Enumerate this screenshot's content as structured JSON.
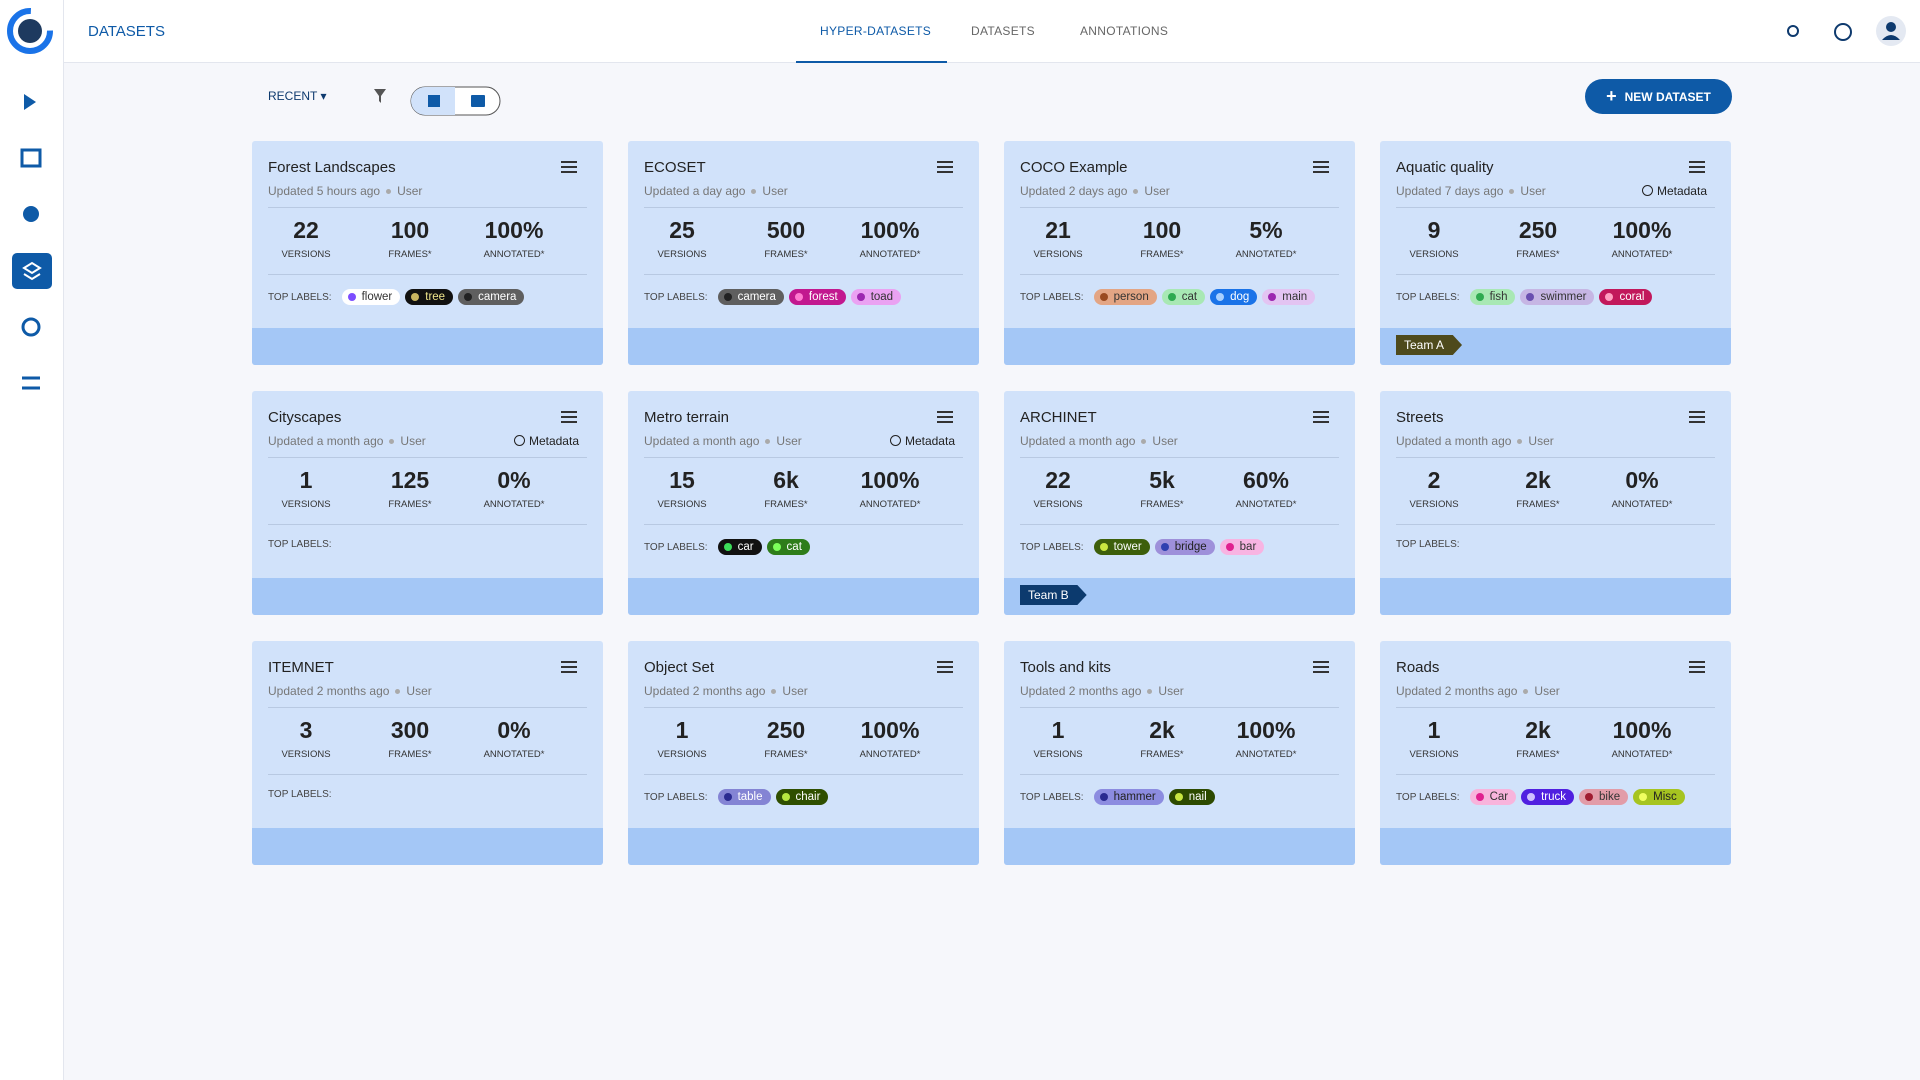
{
  "header": {
    "title": "DATASETS",
    "tabs": [
      "HYPER-DATASETS",
      "DATASETS",
      "ANNOTATIONS"
    ]
  },
  "toolbar": {
    "sort": "RECENT",
    "new_button": "NEW DATASET"
  },
  "cards": [
    {
      "title": "Forest Landscapes",
      "updated": "Updated 5 hours ago",
      "user": "User",
      "stats": [
        {
          "value": "22",
          "label": "VERSIONS"
        },
        {
          "value": "100",
          "label": "FRAMES*"
        },
        {
          "value": "100%",
          "label": "ANNOTATED*"
        }
      ],
      "labels_heading": "TOP LABELS:",
      "labels": [
        {
          "text": "flower",
          "bg": "#ffffff",
          "fg": "#333333",
          "dot": "#7c4dff"
        },
        {
          "text": "tree",
          "bg": "#111111",
          "fg": "#f0e68c",
          "dot": "#c8b560"
        },
        {
          "text": "camera",
          "bg": "#5f5f5f",
          "fg": "#ffffff",
          "dot": "#222222"
        }
      ]
    },
    {
      "title": "ECOSET",
      "updated": "Updated a day ago",
      "user": "User",
      "stats": [
        {
          "value": "25",
          "label": "VERSIONS"
        },
        {
          "value": "500",
          "label": "FRAMES*"
        },
        {
          "value": "100%",
          "label": "ANNOTATED*"
        }
      ],
      "labels_heading": "TOP LABELS:",
      "labels": [
        {
          "text": "camera",
          "bg": "#5f5f5f",
          "fg": "#ffffff",
          "dot": "#222222"
        },
        {
          "text": "forest",
          "bg": "#c2188f",
          "fg": "#ffffff",
          "dot": "#ff7ad0"
        },
        {
          "text": "toad",
          "bg": "#eaa2f2",
          "fg": "#333333",
          "dot": "#9c27b0"
        }
      ]
    },
    {
      "title": "COCO Example",
      "updated": "Updated 2 days ago",
      "user": "User",
      "stats": [
        {
          "value": "21",
          "label": "VERSIONS"
        },
        {
          "value": "100",
          "label": "FRAMES*"
        },
        {
          "value": "5%",
          "label": "ANNOTATED*"
        }
      ],
      "labels_heading": "TOP LABELS:",
      "labels": [
        {
          "text": "person",
          "bg": "#e3a584",
          "fg": "#333333",
          "dot": "#9a4a20"
        },
        {
          "text": "cat",
          "bg": "#a8e8b4",
          "fg": "#333333",
          "dot": "#2eaa50"
        },
        {
          "text": "dog",
          "bg": "#1a73e8",
          "fg": "#ffffff",
          "dot": "#a8d0ff"
        },
        {
          "text": "main",
          "bg": "#e3c4f2",
          "fg": "#333333",
          "dot": "#9c27b0"
        }
      ]
    },
    {
      "title": "Aquatic quality",
      "updated": "Updated 7 days ago",
      "user": "User",
      "metadata": "Metadata",
      "stats": [
        {
          "value": "9",
          "label": "VERSIONS"
        },
        {
          "value": "250",
          "label": "FRAMES*"
        },
        {
          "value": "100%",
          "label": "ANNOTATED*"
        }
      ],
      "labels_heading": "TOP LABELS:",
      "labels": [
        {
          "text": "fish",
          "bg": "#a8e8b4",
          "fg": "#333333",
          "dot": "#2eaa50"
        },
        {
          "text": "swimmer",
          "bg": "#c6b6e4",
          "fg": "#333333",
          "dot": "#6a4fb0"
        },
        {
          "text": "coral",
          "bg": "#c2185b",
          "fg": "#ffffff",
          "dot": "#ff9ec0"
        }
      ],
      "tag": {
        "text": "Team A",
        "color": "#4e4a1c"
      }
    },
    {
      "title": "Cityscapes",
      "updated": "Updated a month ago",
      "user": "User",
      "metadata": "Metadata",
      "stats": [
        {
          "value": "1",
          "label": "VERSIONS"
        },
        {
          "value": "125",
          "label": "FRAMES*"
        },
        {
          "value": "0%",
          "label": "ANNOTATED*"
        }
      ],
      "labels_heading": "TOP LABELS:",
      "labels": []
    },
    {
      "title": "Metro terrain",
      "updated": "Updated a month ago",
      "user": "User",
      "metadata": "Metadata",
      "stats": [
        {
          "value": "15",
          "label": "VERSIONS"
        },
        {
          "value": "6k",
          "label": "FRAMES*"
        },
        {
          "value": "100%",
          "label": "ANNOTATED*"
        }
      ],
      "labels_heading": "TOP LABELS:",
      "labels": [
        {
          "text": "car",
          "bg": "#111111",
          "fg": "#ffffff",
          "dot": "#3ddc5a"
        },
        {
          "text": "cat",
          "bg": "#2e7d1a",
          "fg": "#ffffff",
          "dot": "#7dff5a"
        }
      ]
    },
    {
      "title": "ARCHINET",
      "updated": "Updated a month ago",
      "user": "User",
      "stats": [
        {
          "value": "22",
          "label": "VERSIONS"
        },
        {
          "value": "5k",
          "label": "FRAMES*"
        },
        {
          "value": "60%",
          "label": "ANNOTATED*"
        }
      ],
      "labels_heading": "TOP LABELS:",
      "labels": [
        {
          "text": "tower",
          "bg": "#3d5f0b",
          "fg": "#ffffff",
          "dot": "#c8e640"
        },
        {
          "text": "bridge",
          "bg": "#9e90da",
          "fg": "#222222",
          "dot": "#3040b0"
        },
        {
          "text": "bar",
          "bg": "#f8b4e2",
          "fg": "#333333",
          "dot": "#e0208f"
        }
      ],
      "tag": {
        "text": "Team B",
        "color": "#0c3a6e"
      }
    },
    {
      "title": "Streets",
      "updated": "Updated a month ago",
      "user": "User",
      "stats": [
        {
          "value": "2",
          "label": "VERSIONS"
        },
        {
          "value": "2k",
          "label": "FRAMES*"
        },
        {
          "value": "0%",
          "label": "ANNOTATED*"
        }
      ],
      "labels_heading": "TOP LABELS:",
      "labels": []
    },
    {
      "title": "ITEMNET",
      "updated": "Updated 2 months ago",
      "user": "User",
      "stats": [
        {
          "value": "3",
          "label": "VERSIONS"
        },
        {
          "value": "300",
          "label": "FRAMES*"
        },
        {
          "value": "0%",
          "label": "ANNOTATED*"
        }
      ],
      "labels_heading": "TOP LABELS:",
      "labels": []
    },
    {
      "title": "Object Set",
      "updated": "Updated 2 months ago",
      "user": "User",
      "stats": [
        {
          "value": "1",
          "label": "VERSIONS"
        },
        {
          "value": "250",
          "label": "FRAMES*"
        },
        {
          "value": "100%",
          "label": "ANNOTATED*"
        }
      ],
      "labels_heading": "TOP LABELS:",
      "labels": [
        {
          "text": "table",
          "bg": "#8484d4",
          "fg": "#ffffff",
          "dot": "#2a2a90"
        },
        {
          "text": "chair",
          "bg": "#2f4f00",
          "fg": "#ffffff",
          "dot": "#b6e640"
        }
      ]
    },
    {
      "title": "Tools and kits",
      "updated": "Updated 2 months ago",
      "user": "User",
      "stats": [
        {
          "value": "1",
          "label": "VERSIONS"
        },
        {
          "value": "2k",
          "label": "FRAMES*"
        },
        {
          "value": "100%",
          "label": "ANNOTATED*"
        }
      ],
      "labels_heading": "TOP LABELS:",
      "labels": [
        {
          "text": "hammer",
          "bg": "#8c8ce0",
          "fg": "#222222",
          "dot": "#2a2a90"
        },
        {
          "text": "nail",
          "bg": "#2d4a00",
          "fg": "#ffffff",
          "dot": "#c8e640"
        }
      ]
    },
    {
      "title": "Roads",
      "updated": "Updated 2 months ago",
      "user": "User",
      "stats": [
        {
          "value": "1",
          "label": "VERSIONS"
        },
        {
          "value": "2k",
          "label": "FRAMES*"
        },
        {
          "value": "100%",
          "label": "ANNOTATED*"
        }
      ],
      "labels_heading": "TOP LABELS:",
      "labels": [
        {
          "text": "Car",
          "bg": "#f8b4dc",
          "fg": "#333333",
          "dot": "#e0208f"
        },
        {
          "text": "truck",
          "bg": "#5020e0",
          "fg": "#ffffff",
          "dot": "#d0c0ff"
        },
        {
          "text": "bike",
          "bg": "#e29ca8",
          "fg": "#333333",
          "dot": "#a01c30"
        },
        {
          "text": "Misc",
          "bg": "#a6c420",
          "fg": "#222222",
          "dot": "#f0ff60"
        }
      ]
    }
  ]
}
